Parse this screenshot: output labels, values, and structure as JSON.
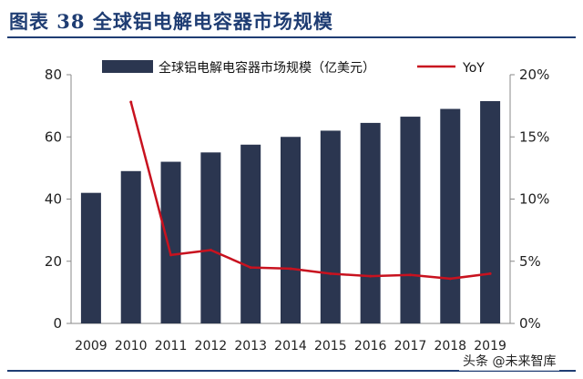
{
  "header": {
    "title": "图表 38   全球铝电解电容器市场规模"
  },
  "chart_data": {
    "type": "bar",
    "categories": [
      "2009",
      "2010",
      "2011",
      "2012",
      "2013",
      "2014",
      "2015",
      "2016",
      "2017",
      "2018",
      "2019"
    ],
    "series": [
      {
        "name": "全球铝电解电容器市场规模（亿美元）",
        "type": "bar",
        "axis": "left",
        "color": "#2b3650",
        "values": [
          42,
          49,
          52,
          55,
          57.5,
          60,
          62,
          64.5,
          66.5,
          69,
          71.5
        ]
      },
      {
        "name": "YoY",
        "type": "line",
        "axis": "right",
        "color": "#c8121f",
        "values": [
          null,
          17.8,
          5.5,
          5.9,
          4.5,
          4.4,
          4.0,
          3.8,
          3.9,
          3.6,
          4.0
        ]
      }
    ],
    "y_left": {
      "ylim": [
        0,
        80
      ],
      "ticks": [
        "0",
        "20",
        "40",
        "60",
        "80"
      ]
    },
    "y_right": {
      "ylim": [
        0,
        20
      ],
      "ticks": [
        "0%",
        "5%",
        "10%",
        "15%",
        "20%"
      ]
    },
    "legend_position": "top",
    "grid": false
  },
  "watermark": "头条 @未来智库",
  "colors": {
    "title": "#1f3d73",
    "bar": "#2b3650",
    "line": "#c8121f",
    "axis": "#888888"
  }
}
